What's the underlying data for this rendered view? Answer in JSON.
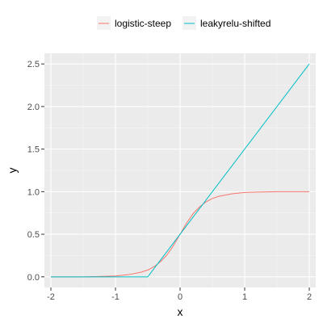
{
  "chart_data": {
    "type": "line",
    "xlabel": "x",
    "ylabel": "y",
    "xlim": [
      -2.1,
      2.1
    ],
    "ylim": [
      -0.125,
      2.625
    ],
    "x_ticks": [
      -2,
      -1,
      0,
      1,
      2
    ],
    "x_tick_labels": [
      "-2",
      "-1",
      "0",
      "1",
      "2"
    ],
    "y_ticks": [
      0.0,
      0.5,
      1.0,
      1.5,
      2.0,
      2.5
    ],
    "y_tick_labels": [
      "0.0",
      "0.5",
      "1.0",
      "1.5",
      "2.0",
      "2.5"
    ],
    "grid": true,
    "legend_position": "top",
    "series": [
      {
        "name": "logistic-steep",
        "color": "#F8766D",
        "x": [
          -2,
          -1.5,
          -1.2,
          -1.0,
          -0.8,
          -0.6,
          -0.5,
          -0.4,
          -0.3,
          -0.2,
          -0.1,
          0.0,
          0.1,
          0.2,
          0.3,
          0.4,
          0.5,
          0.6,
          0.8,
          1.0,
          1.2,
          1.5,
          2.0
        ],
        "y": [
          0.0,
          0.0,
          0.005,
          0.01,
          0.025,
          0.055,
          0.08,
          0.12,
          0.18,
          0.26,
          0.37,
          0.5,
          0.63,
          0.74,
          0.82,
          0.88,
          0.92,
          0.945,
          0.975,
          0.99,
          0.995,
          1.0,
          1.0
        ]
      },
      {
        "name": "leakyrelu-shifted",
        "color": "#00BFC4",
        "x": [
          -2,
          -0.5,
          2
        ],
        "y": [
          0.0,
          0.0,
          2.5
        ]
      }
    ]
  }
}
